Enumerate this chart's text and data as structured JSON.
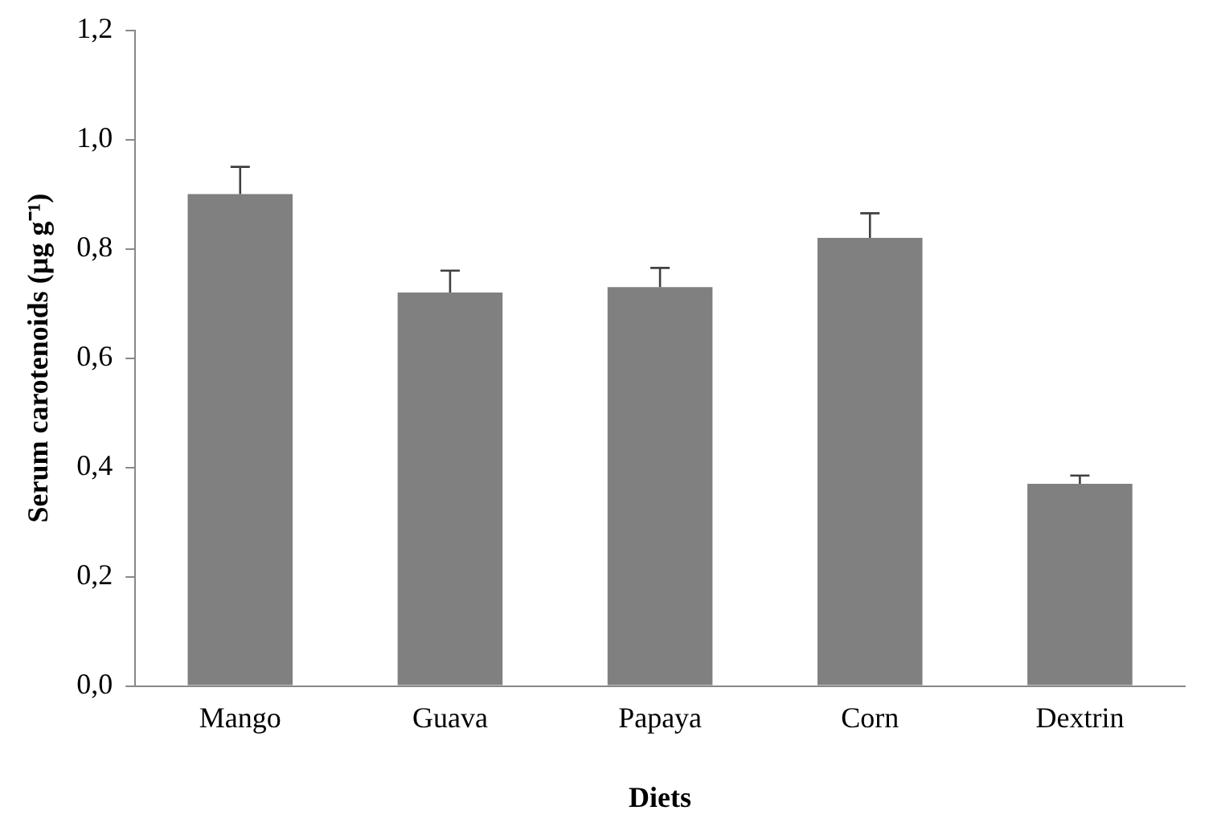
{
  "chart_data": {
    "type": "bar",
    "xlabel": "Diets",
    "ylabel": "Serum carotenoids (µg g⁻¹)",
    "categories": [
      "Mango",
      "Guava",
      "Papaya",
      "Corn",
      "Dextrin"
    ],
    "values": [
      0.9,
      0.72,
      0.73,
      0.82,
      0.37
    ],
    "errors": [
      [
        0.9,
        0.95
      ],
      [
        0.72,
        0.76
      ],
      [
        0.73,
        0.765
      ],
      [
        0.82,
        0.865
      ],
      [
        0.37,
        0.385
      ]
    ],
    "color": "#808080",
    "ylim": [
      0,
      1.2
    ],
    "yticks": [
      {
        "value": 0,
        "label": "0,0"
      },
      {
        "value": 0.2,
        "label": "0,2"
      },
      {
        "value": 0.4,
        "label": "0,4"
      },
      {
        "value": 0.6,
        "label": "0,6"
      },
      {
        "value": 0.8,
        "label": "0,8"
      },
      {
        "value": 1.0,
        "label": "1,0"
      },
      {
        "value": 1.2,
        "label": "1,2"
      }
    ],
    "grid": false,
    "legend": false
  }
}
